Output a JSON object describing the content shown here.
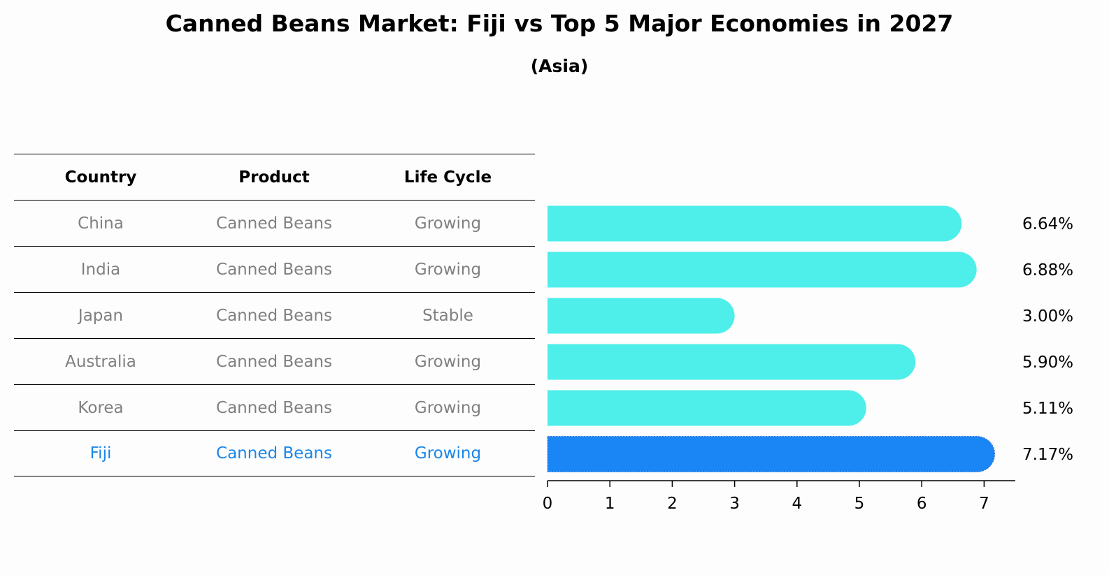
{
  "title": "Canned Beans Market: Fiji vs Top 5 Major Economies in 2027",
  "subtitle": "(Asia)",
  "table": {
    "headers": [
      "Country",
      "Product",
      "Life Cycle"
    ],
    "rows": [
      {
        "country": "China",
        "product": "Canned Beans",
        "life_cycle": "Growing"
      },
      {
        "country": "India",
        "product": "Canned Beans",
        "life_cycle": "Growing"
      },
      {
        "country": "Japan",
        "product": "Canned Beans",
        "life_cycle": "Stable"
      },
      {
        "country": "Australia",
        "product": "Canned Beans",
        "life_cycle": "Growing"
      },
      {
        "country": "Korea",
        "product": "Canned Beans",
        "life_cycle": "Growing"
      },
      {
        "country": "Fiji",
        "product": "Canned Beans",
        "life_cycle": "Growing"
      }
    ]
  },
  "colors": {
    "bar": "#4eeeea",
    "highlight": "#1a86f5",
    "highlight_text": "#1a86e8",
    "muted_text": "#808080"
  },
  "chart_data": {
    "type": "bar",
    "orientation": "horizontal",
    "categories": [
      "China",
      "India",
      "Japan",
      "Australia",
      "Korea",
      "Fiji"
    ],
    "values": [
      6.64,
      6.88,
      3.0,
      5.9,
      5.11,
      7.17
    ],
    "value_labels": [
      "6.64%",
      "6.88%",
      "3.00%",
      "5.90%",
      "5.11%",
      "7.17%"
    ],
    "highlight_category": "Fiji",
    "xlim": [
      0,
      7.5
    ],
    "xticks": [
      0,
      1,
      2,
      3,
      4,
      5,
      6,
      7
    ],
    "title": "Canned Beans Market: Fiji vs Top 5 Major Economies in 2027",
    "subtitle": "(Asia)",
    "xlabel": "",
    "ylabel": ""
  }
}
